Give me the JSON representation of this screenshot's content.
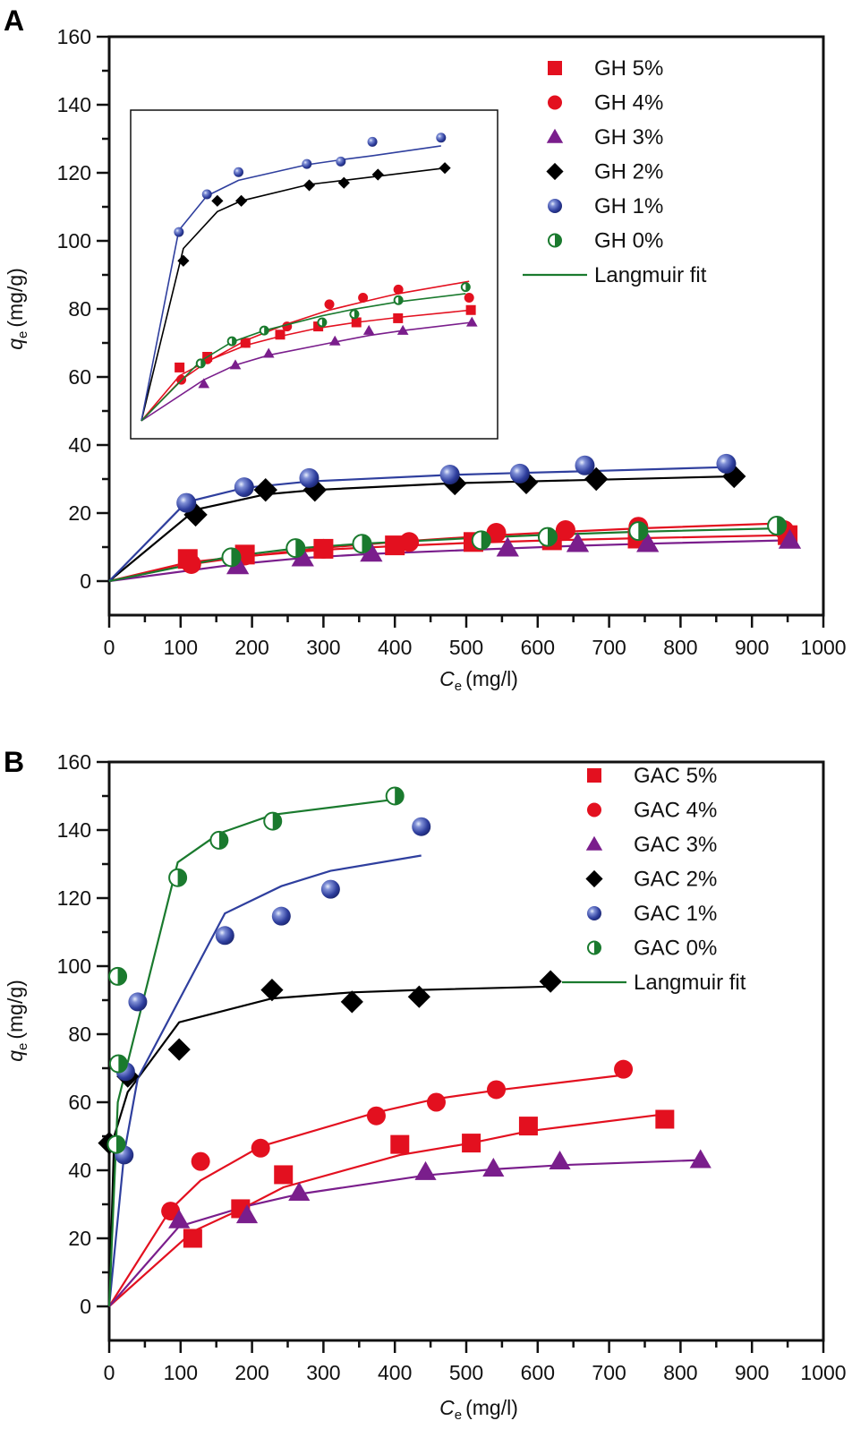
{
  "figure": {
    "panels": [
      "A",
      "B"
    ]
  },
  "chart_data": [
    {
      "type": "scatter",
      "panel_label": "A",
      "title": "",
      "xlabel_main": "C",
      "xlabel_sub": "e",
      "xlabel_unit": "(mg/l)",
      "ylabel_main": "q",
      "ylabel_sub": "e",
      "ylabel_unit": "(mg/g)",
      "xlim": [
        0,
        1000
      ],
      "ylim": [
        -10,
        160
      ],
      "xticks": [
        0,
        100,
        200,
        300,
        400,
        500,
        600,
        700,
        800,
        900,
        1000
      ],
      "xtick_labels": [
        "0",
        "100",
        "200",
        "300",
        "400",
        "500",
        "600",
        "700",
        "800",
        "900",
        "1000"
      ],
      "yticks": [
        0,
        20,
        40,
        60,
        80,
        100,
        120,
        140,
        160
      ],
      "ytick_labels": [
        "0",
        "20",
        "40",
        "60",
        "80",
        "100",
        "120",
        "140",
        "160"
      ],
      "grid": false,
      "legend_position": "top-right",
      "inset": true,
      "fit_label": "Langmuir fit",
      "fit_color": "#1a7a2e",
      "series": [
        {
          "name": "GH 5%",
          "marker": "square",
          "color": "#e3101f",
          "x": [
            110,
            190,
            300,
            400,
            510,
            620,
            740,
            950
          ],
          "y": [
            6.5,
            7.8,
            9.5,
            10.5,
            11.5,
            12.0,
            12.5,
            13.5
          ],
          "fit": [
            [
              0,
              0
            ],
            [
              110,
              5.5
            ],
            [
              190,
              7.3
            ],
            [
              300,
              9.2
            ],
            [
              400,
              10.3
            ],
            [
              510,
              11.3
            ],
            [
              620,
              12.0
            ],
            [
              740,
              12.6
            ],
            [
              950,
              13.5
            ]
          ]
        },
        {
          "name": "GH 4%",
          "marker": "circle",
          "color": "#e3101f",
          "x": [
            115,
            190,
            300,
            420,
            542,
            639,
            741,
            945
          ],
          "y": [
            5.0,
            7.5,
            9.5,
            11.5,
            14.2,
            15.0,
            16.0,
            15.0
          ],
          "fit": [
            [
              0,
              0
            ],
            [
              115,
              5.0
            ],
            [
              190,
              7.2
            ],
            [
              300,
              9.8
            ],
            [
              420,
              11.8
            ],
            [
              542,
              13.5
            ],
            [
              639,
              14.5
            ],
            [
              741,
              15.5
            ],
            [
              945,
              17.0
            ]
          ]
        },
        {
          "name": "GH 3%",
          "marker": "triangle",
          "color": "#7a1e8c",
          "x": [
            180,
            271,
            367,
            558,
            656,
            754,
            953
          ],
          "y": [
            4.5,
            6.8,
            8.2,
            9.7,
            11.0,
            11.0,
            12.0
          ],
          "fit": [
            [
              0,
              0
            ],
            [
              180,
              5.0
            ],
            [
              271,
              6.8
            ],
            [
              367,
              8.0
            ],
            [
              558,
              9.6
            ],
            [
              656,
              10.4
            ],
            [
              754,
              11.0
            ],
            [
              953,
              12.0
            ]
          ]
        },
        {
          "name": "GH 2%",
          "marker": "diamond",
          "color": "#000000",
          "x": [
            121,
            219,
            288,
            484,
            584,
            682,
            875
          ],
          "y": [
            19.5,
            26.8,
            26.8,
            28.7,
            29.0,
            30.0,
            30.8
          ],
          "fit": [
            [
              0,
              0
            ],
            [
              121,
              21.0
            ],
            [
              219,
              25.5
            ],
            [
              288,
              26.8
            ],
            [
              484,
              28.8
            ],
            [
              584,
              29.3
            ],
            [
              682,
              29.8
            ],
            [
              875,
              30.8
            ]
          ]
        },
        {
          "name": "GH 1%",
          "marker": "sphere",
          "color": "#2f3f9e",
          "x": [
            108,
            189,
            280,
            477,
            575,
            666,
            864
          ],
          "y": [
            23.0,
            27.6,
            30.3,
            31.3,
            31.6,
            34.0,
            34.5
          ],
          "fit": [
            [
              0,
              0
            ],
            [
              108,
              23.2
            ],
            [
              189,
              27.4
            ],
            [
              280,
              29.3
            ],
            [
              477,
              31.2
            ],
            [
              575,
              31.8
            ],
            [
              666,
              32.3
            ],
            [
              864,
              33.5
            ]
          ]
        },
        {
          "name": "GH 0%",
          "marker": "half-circle",
          "color": "#1a7a2e",
          "x": [
            171,
            261,
            354,
            521,
            614,
            741,
            935
          ],
          "y": [
            7.0,
            9.7,
            11.0,
            12.0,
            13.0,
            14.7,
            16.3
          ],
          "fit": [
            [
              0,
              0
            ],
            [
              171,
              7.3
            ],
            [
              261,
              9.6
            ],
            [
              354,
              11.0
            ],
            [
              521,
              12.8
            ],
            [
              614,
              13.6
            ],
            [
              741,
              14.5
            ],
            [
              935,
              15.5
            ]
          ]
        }
      ]
    },
    {
      "type": "scatter",
      "panel_label": "B",
      "title": "",
      "xlabel_main": "C",
      "xlabel_sub": "e",
      "xlabel_unit": "(mg/l)",
      "ylabel_main": "q",
      "ylabel_sub": "e",
      "ylabel_unit": "(mg/g)",
      "xlim": [
        0,
        1000
      ],
      "ylim": [
        -10,
        160
      ],
      "xticks": [
        0,
        100,
        200,
        300,
        400,
        500,
        600,
        700,
        800,
        900,
        1000
      ],
      "xtick_labels": [
        "0",
        "100",
        "200",
        "300",
        "400",
        "500",
        "600",
        "700",
        "800",
        "900",
        "1000"
      ],
      "yticks": [
        0,
        20,
        40,
        60,
        80,
        100,
        120,
        140,
        160
      ],
      "ytick_labels": [
        "0",
        "20",
        "40",
        "60",
        "80",
        "100",
        "120",
        "140",
        "160"
      ],
      "grid": false,
      "legend_position": "top-right",
      "inset": false,
      "fit_label": "Langmuir fit",
      "fit_color": "#1a7a2e",
      "series": [
        {
          "name": "GAC 5%",
          "marker": "square",
          "color": "#e3101f",
          "x": [
            117,
            184,
            244,
            407,
            507,
            587,
            778
          ],
          "y": [
            20.0,
            28.7,
            38.7,
            47.6,
            48.0,
            53.0,
            55.0
          ],
          "fit": [
            [
              0,
              0
            ],
            [
              117,
              22.0
            ],
            [
              184,
              28.5
            ],
            [
              244,
              35.0
            ],
            [
              407,
              44.5
            ],
            [
              507,
              48.0
            ],
            [
              587,
              51.5
            ],
            [
              778,
              56.5
            ]
          ]
        },
        {
          "name": "GAC 4%",
          "marker": "circle",
          "color": "#e3101f",
          "x": [
            86,
            128,
            212,
            374,
            458,
            542,
            720
          ],
          "y": [
            28.0,
            42.6,
            46.5,
            56.0,
            60.0,
            63.7,
            69.7
          ],
          "fit": [
            [
              0,
              0
            ],
            [
              86,
              28.5
            ],
            [
              128,
              37.0
            ],
            [
              212,
              47.0
            ],
            [
              374,
              57.0
            ],
            [
              458,
              61.0
            ],
            [
              542,
              63.5
            ],
            [
              720,
              68.0
            ]
          ]
        },
        {
          "name": "GAC 3%",
          "marker": "triangle",
          "color": "#7a1e8c",
          "x": [
            98,
            193,
            266,
            443,
            538,
            631,
            828
          ],
          "y": [
            25.3,
            26.8,
            33.4,
            39.5,
            40.5,
            42.6,
            43.0
          ],
          "fit": [
            [
              0,
              0
            ],
            [
              98,
              23.5
            ],
            [
              193,
              29.5
            ],
            [
              266,
              33.0
            ],
            [
              443,
              38.5
            ],
            [
              538,
              40.3
            ],
            [
              631,
              41.5
            ],
            [
              828,
              43.0
            ]
          ]
        },
        {
          "name": "GAC 2%",
          "marker": "diamond",
          "color": "#000000",
          "x": [
            0,
            26,
            98,
            228,
            340,
            434,
            618
          ],
          "y": [
            48.0,
            67.6,
            75.5,
            93.0,
            89.5,
            91.0,
            95.5
          ],
          "fit": [
            [
              0,
              0
            ],
            [
              7,
              50
            ],
            [
              26,
              63.0
            ],
            [
              98,
              83.5
            ],
            [
              228,
              90.5
            ],
            [
              340,
              92.3
            ],
            [
              434,
              93.0
            ],
            [
              618,
              94.0
            ]
          ]
        },
        {
          "name": "GAC 1%",
          "marker": "sphere",
          "color": "#2f3f9e",
          "x": [
            21,
            23,
            40,
            162,
            241,
            310,
            437
          ],
          "y": [
            44.5,
            69.0,
            89.5,
            109.0,
            114.7,
            122.6,
            141.0
          ],
          "fit": [
            [
              0,
              0
            ],
            [
              21,
              45
            ],
            [
              40,
              67.0
            ],
            [
              162,
              115.5
            ],
            [
              241,
              123.5
            ],
            [
              310,
              128.0
            ],
            [
              437,
              132.5
            ]
          ]
        },
        {
          "name": "GAC 0%",
          "marker": "half-circle",
          "color": "#1a7a2e",
          "x": [
            10,
            13,
            12,
            96,
            154,
            229,
            400
          ],
          "y": [
            47.6,
            71.3,
            97.0,
            126.0,
            137.0,
            142.6,
            150.0
          ],
          "fit": [
            [
              0,
              0
            ],
            [
              12,
              60.0
            ],
            [
              96,
              130.5
            ],
            [
              154,
              139.0
            ],
            [
              229,
              144.5
            ],
            [
              400,
              149.0
            ]
          ]
        }
      ]
    }
  ]
}
